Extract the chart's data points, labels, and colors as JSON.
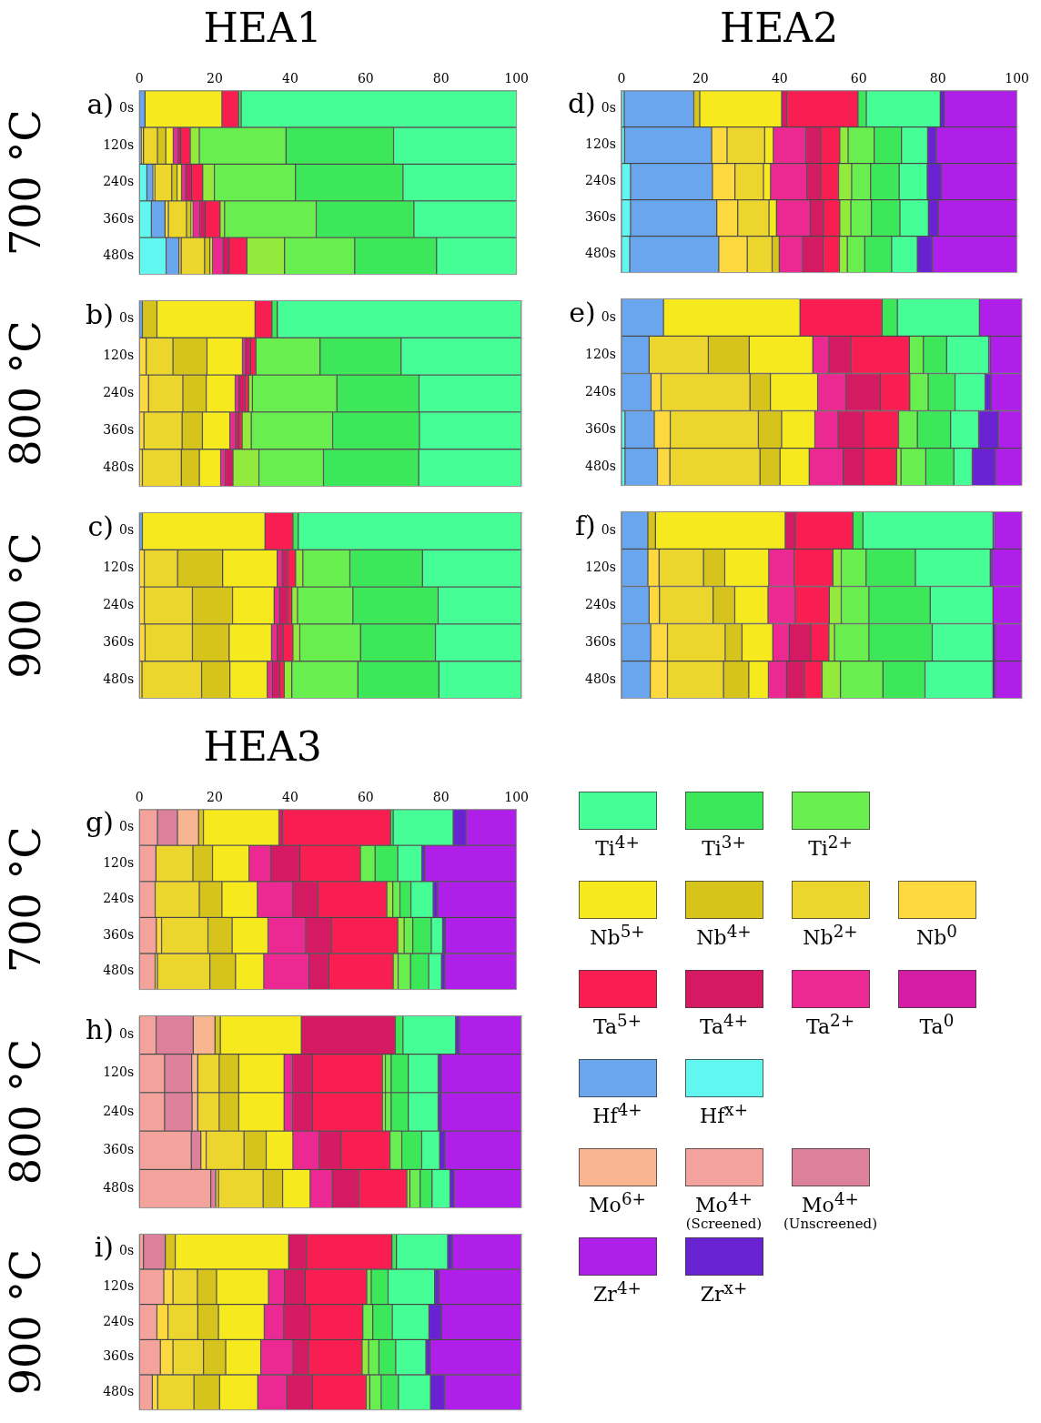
{
  "chart_data": [
    {
      "type": "bar",
      "orientation": "horizontal",
      "stacked": true,
      "title": "HEA1",
      "ylabel": "700 °C",
      "annotations": [
        "a)"
      ],
      "categories": [
        "0s",
        "120s",
        "240s",
        "360s",
        "480s"
      ],
      "xlim": [
        0,
        100
      ],
      "xticks": [
        0,
        20,
        40,
        60,
        80,
        100
      ],
      "series": [
        {
          "color": "#62f6f0",
          "values": [
            null,
            null,
            2.0,
            3.2,
            7.1
          ]
        },
        {
          "color": "#6aa6ee",
          "values": [
            1.5,
            0.5,
            1.6,
            3.6,
            3.4
          ]
        },
        {
          "color": "#fdd83e",
          "values": [
            null,
            0.6,
            0.5,
            0.9,
            0.6
          ]
        },
        {
          "color": "#ecd52c",
          "values": [
            null,
            3.7,
            4.5,
            4.8,
            6.2
          ]
        },
        {
          "color": "#d6c41c",
          "values": [
            null,
            2.2,
            1.4,
            1.2,
            1.4
          ]
        },
        {
          "color": "#f6ea1e",
          "values": [
            20.4,
            2.0,
            1.2,
            0.5,
            0.7
          ]
        },
        {
          "color": "#ec2892",
          "values": [
            null,
            1.3,
            1.1,
            1.8,
            2.8
          ]
        },
        {
          "color": "#d41a62",
          "values": [
            null,
            0.7,
            1.5,
            1.5,
            1.6
          ]
        },
        {
          "color": "#f81e52",
          "values": [
            4.4,
            2.5,
            3.0,
            3.9,
            4.7
          ]
        },
        {
          "color": "#92ea3c",
          "values": [
            null,
            2.4,
            3.1,
            1.2,
            10.0
          ]
        },
        {
          "color": "#68ee4e",
          "values": [
            null,
            23.0,
            21.5,
            24.3,
            18.6
          ]
        },
        {
          "color": "#3ce85a",
          "values": [
            0.7,
            28.5,
            28.5,
            25.9,
            21.7
          ]
        },
        {
          "color": "#46fe96",
          "values": [
            73.0,
            32.6,
            30.1,
            27.2,
            21.2
          ]
        }
      ]
    },
    {
      "type": "bar",
      "orientation": "horizontal",
      "stacked": true,
      "ylabel": "800 °C",
      "annotations": [
        "b)"
      ],
      "categories": [
        "0s",
        "120s",
        "240s",
        "360s",
        "480s"
      ],
      "xlim": [
        0,
        100
      ],
      "xticks": [
        0,
        20,
        40,
        60,
        80,
        100
      ],
      "tick_labels": "y",
      "series": [
        {
          "color": "#6aa6ee",
          "values": [
            0.8,
            null,
            null,
            null,
            null
          ]
        },
        {
          "color": "#fdd83e",
          "values": [
            null,
            1.8,
            2.4,
            1.2,
            0.8
          ]
        },
        {
          "color": "#ecd52c",
          "values": [
            null,
            7.0,
            9.0,
            10.0,
            10.2
          ]
        },
        {
          "color": "#d6c41c",
          "values": [
            3.8,
            8.9,
            6.1,
            5.3,
            4.7
          ]
        },
        {
          "color": "#f6ea1e",
          "values": [
            25.7,
            9.3,
            7.6,
            7.2,
            5.6
          ]
        },
        {
          "color": "#ec2892",
          "values": [
            null,
            0.8,
            1.0,
            1.4,
            1.2
          ]
        },
        {
          "color": "#d41a62",
          "values": [
            null,
            1.3,
            1.6,
            0.9,
            2.0
          ]
        },
        {
          "color": "#f81e52",
          "values": [
            4.4,
            1.4,
            0.9,
            0.9,
            null
          ]
        },
        {
          "color": "#92ea3c",
          "values": [
            null,
            null,
            1.0,
            2.4,
            6.8
          ]
        },
        {
          "color": "#68ee4e",
          "values": [
            null,
            16.8,
            22.1,
            21.3,
            16.9
          ]
        },
        {
          "color": "#3ce85a",
          "values": [
            1.4,
            21.2,
            21.5,
            22.7,
            24.9
          ]
        },
        {
          "color": "#46fe96",
          "values": [
            63.9,
            31.5,
            26.8,
            26.7,
            26.9
          ]
        }
      ]
    },
    {
      "type": "bar",
      "orientation": "horizontal",
      "stacked": true,
      "ylabel": "900 °C",
      "annotations": [
        "c)"
      ],
      "categories": [
        "0s",
        "120s",
        "240s",
        "360s",
        "480s"
      ],
      "xlim": [
        0,
        100
      ],
      "xticks": [
        0,
        20,
        40,
        60,
        80,
        100
      ],
      "tick_labels": "y",
      "series": [
        {
          "color": "#6aa6ee",
          "values": [
            0.8,
            null,
            null,
            null,
            null
          ]
        },
        {
          "color": "#fdd83e",
          "values": [
            null,
            1.3,
            1.3,
            1.5,
            0.7
          ]
        },
        {
          "color": "#ecd52c",
          "values": [
            null,
            8.7,
            12.6,
            12.4,
            15.6
          ]
        },
        {
          "color": "#d6c41c",
          "values": [
            null,
            11.8,
            10.5,
            9.6,
            7.4
          ]
        },
        {
          "color": "#f6ea1e",
          "values": [
            32.1,
            14.3,
            10.9,
            11.1,
            9.8
          ]
        },
        {
          "color": "#ec2892",
          "values": [
            null,
            1.3,
            1.4,
            1.5,
            1.4
          ]
        },
        {
          "color": "#d41a62",
          "values": [
            null,
            1.4,
            2.1,
            1.6,
            1.8
          ]
        },
        {
          "color": "#f81e52",
          "values": [
            7.3,
            2.1,
            1.1,
            2.5,
            1.2
          ]
        },
        {
          "color": "#92ea3c",
          "values": [
            null,
            1.9,
            1.5,
            1.8,
            2.0
          ]
        },
        {
          "color": "#68ee4e",
          "values": [
            null,
            12.3,
            14.5,
            15.9,
            17.3
          ]
        },
        {
          "color": "#3ce85a",
          "values": [
            1.4,
            19.0,
            22.3,
            19.6,
            21.2
          ]
        },
        {
          "color": "#46fe96",
          "values": [
            58.4,
            25.9,
            21.8,
            22.5,
            21.6
          ]
        }
      ]
    },
    {
      "type": "bar",
      "orientation": "horizontal",
      "stacked": true,
      "title": "HEA2",
      "annotations": [
        "d)"
      ],
      "categories": [
        "0s",
        "120s",
        "240s",
        "360s",
        "480s"
      ],
      "xlim": [
        0,
        100
      ],
      "xticks": [
        0,
        20,
        40,
        60,
        80,
        100
      ],
      "series": [
        {
          "color": "#62f6f0",
          "values": [
            0.7,
            0.8,
            2.3,
            2.3,
            2.1
          ]
        },
        {
          "color": "#6aa6ee",
          "values": [
            17.6,
            22.0,
            20.7,
            21.8,
            22.5
          ]
        },
        {
          "color": "#fdd83e",
          "values": [
            null,
            3.9,
            5.7,
            5.3,
            7.2
          ]
        },
        {
          "color": "#ecd52c",
          "values": [
            null,
            9.5,
            7.2,
            7.9,
            6.3
          ]
        },
        {
          "color": "#d6c41c",
          "values": [
            1.5,
            null,
            null,
            null,
            1.8
          ]
        },
        {
          "color": "#f6ea1e",
          "values": [
            20.7,
            2.2,
            1.8,
            1.9,
            null
          ]
        },
        {
          "color": "#ec2892",
          "values": [
            null,
            8.2,
            9.2,
            8.5,
            5.9
          ]
        },
        {
          "color": "#d41a62",
          "values": [
            1.3,
            3.8,
            3.5,
            3.4,
            5.2
          ]
        },
        {
          "color": "#f81e52",
          "values": [
            18.0,
            4.8,
            4.5,
            4.1,
            4.1
          ]
        },
        {
          "color": "#92ea3c",
          "values": [
            null,
            2.1,
            3.3,
            2.8,
            2.0
          ]
        },
        {
          "color": "#68ee4e",
          "values": [
            null,
            6.6,
            4.8,
            5.2,
            4.4
          ]
        },
        {
          "color": "#3ce85a",
          "values": [
            2.1,
            6.9,
            7.2,
            7.2,
            6.8
          ]
        },
        {
          "color": "#46fe96",
          "values": [
            18.7,
            6.6,
            7.1,
            7.2,
            6.5
          ]
        },
        {
          "color": "#6822d2",
          "values": [
            1.0,
            2.2,
            3.5,
            2.5,
            3.8
          ]
        },
        {
          "color": "#b01eea",
          "values": [
            18.4,
            20.4,
            19.2,
            19.9,
            21.4
          ]
        }
      ]
    },
    {
      "type": "bar",
      "orientation": "horizontal",
      "stacked": true,
      "annotations": [
        "e)"
      ],
      "categories": [
        "0s",
        "120s",
        "240s",
        "360s",
        "480s"
      ],
      "xlim": [
        0,
        100
      ],
      "xticks": [
        0,
        20,
        40,
        60,
        80,
        100
      ],
      "tick_labels": "y",
      "series": [
        {
          "color": "#62f6f0",
          "values": [
            null,
            null,
            null,
            0.9,
            0.9
          ]
        },
        {
          "color": "#6aa6ee",
          "values": [
            10.5,
            6.9,
            7.4,
            7.3,
            8.1
          ]
        },
        {
          "color": "#fdd83e",
          "values": [
            null,
            null,
            2.5,
            4.0,
            3.1
          ]
        },
        {
          "color": "#ecd52c",
          "values": [
            null,
            14.8,
            22.2,
            22.0,
            22.5
          ]
        },
        {
          "color": "#d6c41c",
          "values": [
            null,
            10.2,
            5.1,
            5.8,
            5.0
          ]
        },
        {
          "color": "#f6ea1e",
          "values": [
            34.1,
            15.9,
            11.8,
            8.3,
            7.3
          ]
        },
        {
          "color": "#ec2892",
          "values": [
            null,
            4.0,
            7.1,
            5.8,
            8.5
          ]
        },
        {
          "color": "#d41a62",
          "values": [
            null,
            5.6,
            8.6,
            6.4,
            5.1
          ]
        },
        {
          "color": "#f81e52",
          "values": [
            20.5,
            14.5,
            7.3,
            8.7,
            8.2
          ]
        },
        {
          "color": "#92ea3c",
          "values": [
            null,
            null,
            null,
            null,
            1.1
          ]
        },
        {
          "color": "#68ee4e",
          "values": [
            null,
            3.5,
            4.6,
            4.7,
            6.2
          ]
        },
        {
          "color": "#3ce85a",
          "values": [
            3.8,
            5.8,
            6.7,
            8.3,
            7.0
          ]
        },
        {
          "color": "#46fe96",
          "values": [
            20.5,
            10.5,
            7.5,
            7.0,
            4.6
          ]
        },
        {
          "color": "#6822d2",
          "values": [
            null,
            0.4,
            1.5,
            5.0,
            5.8
          ]
        },
        {
          "color": "#b01eea",
          "values": [
            10.6,
            7.9,
            7.7,
            5.8,
            6.6
          ]
        }
      ]
    },
    {
      "type": "bar",
      "orientation": "horizontal",
      "stacked": true,
      "annotations": [
        "f)"
      ],
      "categories": [
        "0s",
        "120s",
        "240s",
        "360s",
        "480s"
      ],
      "xlim": [
        0,
        100
      ],
      "xticks": [
        0,
        20,
        40,
        60,
        80,
        100
      ],
      "tick_labels": "y",
      "series": [
        {
          "color": "#6aa6ee",
          "values": [
            6.6,
            6.6,
            6.9,
            7.3,
            7.2
          ]
        },
        {
          "color": "#fdd83e",
          "values": [
            null,
            2.8,
            2.6,
            4.2,
            4.3
          ]
        },
        {
          "color": "#ecd52c",
          "values": [
            null,
            11.1,
            13.4,
            14.4,
            14.0
          ]
        },
        {
          "color": "#d6c41c",
          "values": [
            1.9,
            5.3,
            5.4,
            4.2,
            6.3
          ]
        },
        {
          "color": "#f6ea1e",
          "values": [
            32.4,
            11.0,
            8.3,
            7.7,
            4.9
          ]
        },
        {
          "color": "#ec2892",
          "values": [
            null,
            6.3,
            6.8,
            4.1,
            4.5
          ]
        },
        {
          "color": "#d41a62",
          "values": [
            2.5,
            null,
            null,
            5.4,
            4.5
          ]
        },
        {
          "color": "#f81e52",
          "values": [
            14.4,
            9.7,
            8.5,
            4.5,
            4.4
          ]
        },
        {
          "color": "#92ea3c",
          "values": [
            null,
            2.1,
            3.0,
            1.4,
            4.6
          ]
        },
        {
          "color": "#68ee4e",
          "values": [
            null,
            6.2,
            6.9,
            8.6,
            10.6
          ]
        },
        {
          "color": "#3ce85a",
          "values": [
            2.5,
            12.3,
            15.3,
            15.8,
            10.5
          ]
        },
        {
          "color": "#46fe96",
          "values": [
            32.5,
            18.7,
            15.7,
            15.2,
            17.0
          ]
        },
        {
          "color": "#6822d2",
          "values": [
            0.4,
            0.5,
            null,
            0.6,
            0.6
          ]
        },
        {
          "color": "#b01eea",
          "values": [
            6.8,
            7.4,
            7.2,
            6.6,
            6.6
          ]
        }
      ]
    },
    {
      "type": "bar",
      "orientation": "horizontal",
      "stacked": true,
      "title": "HEA3",
      "ylabel": "700 °C",
      "annotations": [
        "g)"
      ],
      "legend": "right",
      "categories": [
        "0s",
        "120s",
        "240s",
        "360s",
        "480s"
      ],
      "xlim": [
        0,
        100
      ],
      "xticks": [
        0,
        20,
        40,
        60,
        80,
        100
      ],
      "series": [
        {
          "name": "Hf$^{x+}$",
          "color": "#62f6f0",
          "values": [
            null,
            null,
            null,
            null,
            null
          ]
        },
        {
          "name": "Hf$^{4+}$",
          "color": "#6aa6ee",
          "values": [
            null,
            null,
            null,
            null,
            null
          ]
        },
        {
          "name": "Mo$^{4+}$\n(Screened)",
          "color": "#f4a29c",
          "values": [
            4.8,
            4.4,
            4.2,
            4.5,
            4.2
          ]
        },
        {
          "name": "Mo$^{4+}$\n(Unscreened)",
          "color": "#dc809c",
          "values": [
            5.3,
            null,
            null,
            null,
            null
          ]
        },
        {
          "name": "Mo$^{6+}$",
          "color": "#f9b490",
          "values": [
            5.6,
            null,
            null,
            null,
            null
          ]
        },
        {
          "name": "Nb$^{0}$",
          "color": "#fdd83e",
          "values": [
            null,
            null,
            null,
            1.4,
            0.6
          ]
        },
        {
          "name": "Nb$^{2+}$",
          "color": "#ecd52c",
          "values": [
            null,
            9.8,
            11.7,
            12.3,
            13.9
          ]
        },
        {
          "name": "Nb$^{4+}$",
          "color": "#d6c41c",
          "values": [
            1.3,
            5.2,
            6.0,
            6.4,
            6.8
          ]
        },
        {
          "name": "Nb$^{5+}$",
          "color": "#f6ea1e",
          "values": [
            20.0,
            9.7,
            9.4,
            9.5,
            7.5
          ]
        },
        {
          "name": "Ta$^{0}$",
          "color": "#d41ca4",
          "values": [
            null,
            null,
            null,
            null,
            null
          ]
        },
        {
          "name": "Ta$^{2+}$",
          "color": "#ec2892",
          "values": [
            null,
            5.8,
            9.4,
            10.0,
            12.0
          ]
        },
        {
          "name": "Ta$^{4+}$",
          "color": "#d41a62",
          "values": [
            1.0,
            7.7,
            6.7,
            6.8,
            5.2
          ]
        },
        {
          "name": "Ta$^{5+}$",
          "color": "#f81e52",
          "values": [
            28.6,
            16.0,
            18.2,
            17.6,
            17.1
          ]
        },
        {
          "color": "#92ea3c",
          "values": [
            null,
            null,
            1.6,
            1.7,
            1.3
          ]
        },
        {
          "name": "Ti$^{2+}$",
          "color": "#68ee4e",
          "values": [
            null,
            3.9,
            1.9,
            2.3,
            3.3
          ]
        },
        {
          "name": "Ti$^{3+}$",
          "color": "#3ce85a",
          "values": [
            0.7,
            6.0,
            2.9,
            4.9,
            4.8
          ]
        },
        {
          "name": "Ti$^{4+}$",
          "color": "#46fe96",
          "values": [
            15.9,
            6.4,
            5.9,
            3.0,
            3.4
          ]
        },
        {
          "name": "Zr$^{x+}$",
          "color": "#6822d2",
          "values": [
            3.5,
            0.8,
            1.2,
            0.7,
            0.9
          ]
        },
        {
          "name": "Zr$^{4+}$",
          "color": "#b01eea",
          "values": [
            13.3,
            24.3,
            20.9,
            18.9,
            19.0
          ]
        }
      ]
    },
    {
      "type": "bar",
      "orientation": "horizontal",
      "stacked": true,
      "ylabel": "800 °C",
      "annotations": [
        "h)"
      ],
      "categories": [
        "0s",
        "120s",
        "240s",
        "360s",
        "480s"
      ],
      "xlim": [
        0,
        100
      ],
      "xticks": [
        0,
        20,
        40,
        60,
        80,
        100
      ],
      "tick_labels": "y",
      "series": [
        {
          "color": "#f4a29c",
          "values": [
            4.4,
            6.6,
            6.6,
            13.6,
            18.7
          ]
        },
        {
          "color": "#dc809c",
          "values": [
            9.7,
            7.1,
            7.2,
            2.5,
            1.3
          ]
        },
        {
          "color": "#f9b490",
          "values": [
            5.7,
            1.6,
            1.5,
            null,
            null
          ]
        },
        {
          "color": "#fdd83e",
          "values": [
            null,
            null,
            null,
            1.4,
            0.7
          ]
        },
        {
          "color": "#ecd52c",
          "values": [
            null,
            5.6,
            5.6,
            9.9,
            11.7
          ]
        },
        {
          "color": "#d6c41c",
          "values": [
            1.4,
            5.1,
            5.1,
            5.8,
            5.1
          ]
        },
        {
          "color": "#f6ea1e",
          "values": [
            21.2,
            11.9,
            11.9,
            7.0,
            7.2
          ]
        },
        {
          "color": "#ec2892",
          "values": [
            null,
            2.2,
            2.2,
            6.8,
            5.8
          ]
        },
        {
          "color": "#d41a62",
          "values": [
            24.6,
            5.2,
            5.2,
            5.8,
            7.0
          ]
        },
        {
          "color": "#f81e52",
          "values": [
            null,
            18.3,
            18.3,
            12.8,
            12.5
          ]
        },
        {
          "color": "#92ea3c",
          "values": [
            null,
            0.8,
            0.8,
            null,
            0.8
          ]
        },
        {
          "color": "#68ee4e",
          "values": [
            null,
            1.5,
            1.5,
            3.1,
            2.7
          ]
        },
        {
          "color": "#3ce85a",
          "values": [
            2.0,
            4.5,
            4.5,
            5.2,
            3.1
          ]
        },
        {
          "color": "#46fe96",
          "values": [
            13.8,
            7.8,
            7.8,
            4.7,
            4.7
          ]
        },
        {
          "color": "#6822d2",
          "values": [
            1.0,
            0.8,
            0.8,
            1.5,
            1.2
          ]
        },
        {
          "color": "#b01eea",
          "values": [
            16.2,
            21.0,
            21.0,
            19.9,
            17.5
          ]
        }
      ]
    },
    {
      "type": "bar",
      "orientation": "horizontal",
      "stacked": true,
      "ylabel": "900 °C",
      "annotations": [
        "i)"
      ],
      "categories": [
        "0s",
        "120s",
        "240s",
        "360s",
        "480s"
      ],
      "xlim": [
        0,
        100
      ],
      "xticks": [
        0,
        20,
        40,
        60,
        80,
        100
      ],
      "tick_labels": "y",
      "series": [
        {
          "color": "#f4a29c",
          "values": [
            1.1,
            6.4,
            4.6,
            5.5,
            3.4
          ]
        },
        {
          "color": "#dc809c",
          "values": [
            5.7,
            null,
            null,
            null,
            null
          ]
        },
        {
          "color": "#fdd83e",
          "values": [
            null,
            2.4,
            2.9,
            3.3,
            1.4
          ]
        },
        {
          "color": "#ecd52c",
          "values": [
            null,
            6.4,
            7.8,
            8.0,
            9.5
          ]
        },
        {
          "color": "#d6c41c",
          "values": [
            2.6,
            5.0,
            5.4,
            5.8,
            6.7
          ]
        },
        {
          "color": "#f6ea1e",
          "values": [
            29.7,
            13.6,
            12.0,
            9.2,
            10.0
          ]
        },
        {
          "color": "#ec2892",
          "values": [
            null,
            4.2,
            5.1,
            8.4,
            7.6
          ]
        },
        {
          "color": "#d41a62",
          "values": [
            4.7,
            5.4,
            6.9,
            4.2,
            6.7
          ]
        },
        {
          "color": "#f81e52",
          "values": [
            22.3,
            16.1,
            13.8,
            13.9,
            14.1
          ]
        },
        {
          "color": "#92ea3c",
          "values": [
            null,
            null,
            null,
            1.7,
            0.9
          ]
        },
        {
          "color": "#68ee4e",
          "values": [
            null,
            1.2,
            2.6,
            2.7,
            3.0
          ]
        },
        {
          "color": "#3ce85a",
          "values": [
            1.2,
            4.4,
            5.1,
            4.4,
            4.5
          ]
        },
        {
          "color": "#46fe96",
          "values": [
            13.4,
            12.2,
            9.6,
            7.9,
            8.4
          ]
        },
        {
          "color": "#6822d2",
          "values": [
            1.3,
            1.1,
            3.3,
            1.1,
            3.7
          ]
        },
        {
          "color": "#b01eea",
          "values": [
            18.0,
            21.6,
            20.9,
            23.9,
            20.1
          ]
        }
      ]
    }
  ]
}
